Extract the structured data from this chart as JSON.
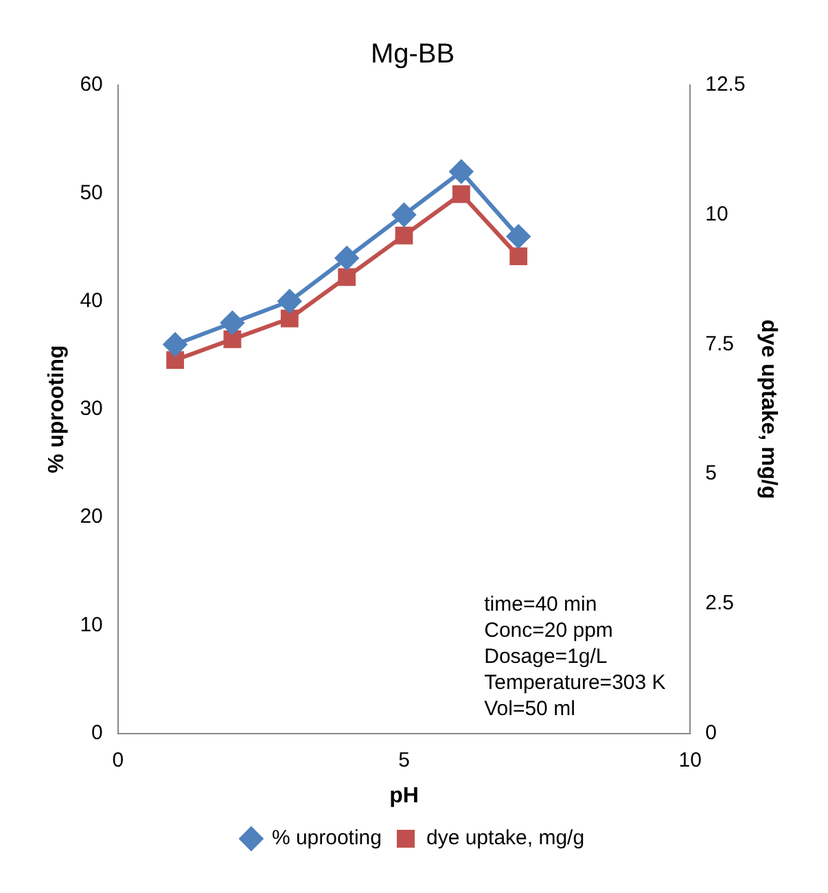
{
  "chart_data": {
    "type": "line",
    "title": "Mg-BB",
    "xlabel": "pH",
    "ylabel": "% uprooting",
    "y2label": "dye uptake, mg/g",
    "x": [
      1,
      2,
      3,
      4,
      5,
      6,
      7
    ],
    "series": [
      {
        "name": "% uprooting",
        "color": "#4f81bd",
        "values": [
          36,
          38,
          40,
          44,
          48,
          52,
          46
        ],
        "marker": "diamond"
      },
      {
        "name": "dye uptake, mg/g",
        "color": "#c0504d",
        "values": [
          7.2,
          7.6,
          8,
          8.8,
          9.6,
          10.4,
          9.2
        ],
        "axis": "y2",
        "marker": "square"
      }
    ],
    "xlim": [
      0,
      10
    ],
    "xticks": [
      0,
      5,
      10
    ],
    "ylim": [
      0,
      60
    ],
    "yticks": [
      0,
      10,
      20,
      30,
      40,
      50,
      60
    ],
    "y2lim": [
      0,
      12.5
    ],
    "y2ticks": [
      0,
      2.5,
      5,
      7.5,
      10,
      12.5
    ],
    "grid": false,
    "legend": "bottom",
    "line_style": "solid",
    "annotations": [
      "time=40 min",
      "Conc=20 ppm",
      "Dosage=1g/L",
      "Temperature=303 K",
      "Vol=50 ml"
    ]
  }
}
